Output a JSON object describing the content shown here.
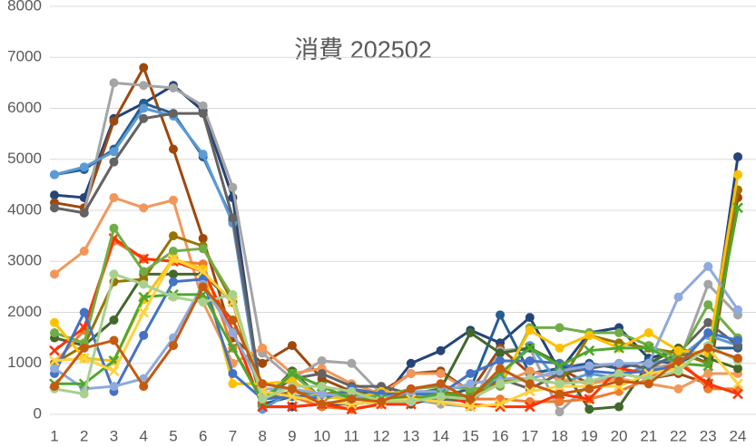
{
  "chart_data": {
    "type": "line",
    "title": "消費 202502",
    "categories": [
      "1",
      "2",
      "3",
      "4",
      "5",
      "6",
      "7",
      "8",
      "9",
      "10",
      "11",
      "12",
      "13",
      "14",
      "15",
      "16",
      "17",
      "18",
      "19",
      "20",
      "21",
      "22",
      "23",
      "24"
    ],
    "ylim": [
      0,
      8000
    ],
    "yticks": [
      0,
      1000,
      2000,
      3000,
      4000,
      5000,
      6000,
      7000,
      8000
    ],
    "grid": true,
    "series": [
      {
        "color": "#264478",
        "marker": "circle",
        "values": [
          4300,
          4250,
          5800,
          6100,
          6450,
          5950,
          4250,
          150,
          150,
          200,
          200,
          250,
          1000,
          1250,
          1650,
          1400,
          1900,
          850,
          1600,
          1700,
          1100,
          1250,
          1000,
          5050
        ]
      },
      {
        "color": "#9e480e",
        "marker": "circle",
        "values": [
          4150,
          4050,
          5750,
          6800,
          5200,
          3450,
          1500,
          1000,
          1350,
          700,
          450,
          450,
          800,
          850,
          450,
          1300,
          800,
          900,
          600,
          800,
          700,
          800,
          600,
          4250
        ]
      },
      {
        "color": "#a5a5a5",
        "marker": "circle",
        "values": [
          4050,
          3950,
          6500,
          6450,
          6400,
          6050,
          4450,
          1200,
          700,
          1050,
          1000,
          400,
          300,
          200,
          150,
          1250,
          1300,
          50,
          600,
          800,
          900,
          1000,
          2550,
          1950
        ]
      },
      {
        "color": "#255e91",
        "marker": "circle",
        "values": [
          4700,
          4800,
          5200,
          6100,
          5900,
          5050,
          3800,
          200,
          350,
          350,
          350,
          200,
          200,
          350,
          500,
          1950,
          800,
          900,
          1000,
          900,
          1050,
          1000,
          1300,
          1300
        ]
      },
      {
        "color": "#5b9bd5",
        "marker": "circle",
        "values": [
          4700,
          4850,
          5150,
          6000,
          5850,
          5100,
          3750,
          100,
          450,
          300,
          450,
          300,
          400,
          300,
          300,
          750,
          1350,
          600,
          800,
          700,
          1000,
          1100,
          1550,
          1350
        ]
      },
      {
        "color": "#f1975a",
        "marker": "circle",
        "values": [
          2750,
          3200,
          4250,
          4050,
          4200,
          2200,
          1000,
          1300,
          800,
          900,
          600,
          400,
          800,
          800,
          450,
          600,
          850,
          700,
          600,
          700,
          600,
          500,
          800,
          800
        ]
      },
      {
        "color": "#636363",
        "marker": "circle",
        "values": [
          4050,
          3950,
          4950,
          5800,
          5900,
          5900,
          3850,
          300,
          700,
          800,
          550,
          550,
          400,
          300,
          250,
          700,
          500,
          800,
          900,
          1000,
          900,
          1200,
          1800,
          1350
        ]
      },
      {
        "color": "#43682b",
        "marker": "circle",
        "values": [
          1500,
          1350,
          1850,
          2750,
          2750,
          2750,
          2200,
          250,
          850,
          300,
          400,
          400,
          400,
          500,
          1600,
          1200,
          1300,
          1000,
          100,
          150,
          1000,
          1300,
          1100,
          900
        ]
      },
      {
        "color": "#ed7d31",
        "marker": "circle",
        "values": [
          1000,
          1650,
          3400,
          3050,
          3000,
          2950,
          1300,
          300,
          350,
          150,
          100,
          200,
          300,
          350,
          300,
          300,
          250,
          250,
          300,
          450,
          700,
          1100,
          500,
          500
        ]
      },
      {
        "color": "#ff3300",
        "marker": "x",
        "values": [
          1250,
          1700,
          3450,
          3050,
          3000,
          2800,
          1650,
          150,
          150,
          200,
          100,
          200,
          200,
          400,
          200,
          150,
          150,
          400,
          300,
          900,
          800,
          1000,
          600,
          400
        ]
      },
      {
        "color": "#997300",
        "marker": "circle",
        "values": [
          1000,
          1350,
          2600,
          2650,
          3500,
          3300,
          2200,
          300,
          450,
          400,
          450,
          300,
          350,
          450,
          350,
          650,
          700,
          600,
          1550,
          1400,
          1300,
          1200,
          1000,
          4400
        ]
      },
      {
        "color": "#70ad47",
        "marker": "circle",
        "values": [
          1600,
          1400,
          3650,
          2800,
          3200,
          3250,
          2300,
          300,
          800,
          300,
          400,
          350,
          500,
          550,
          500,
          550,
          1700,
          1700,
          1600,
          1600,
          1350,
          1100,
          2150,
          1500
        ]
      },
      {
        "color": "#ffc000",
        "marker": "circle",
        "values": [
          1800,
          1100,
          1050,
          2250,
          3050,
          2850,
          600,
          600,
          650,
          350,
          300,
          450,
          400,
          350,
          300,
          600,
          1650,
          1300,
          1550,
          1300,
          1600,
          1250,
          1200,
          4700
        ]
      },
      {
        "color": "#4472c4",
        "marker": "circle",
        "values": [
          800,
          2000,
          450,
          1550,
          2600,
          2650,
          800,
          300,
          350,
          300,
          500,
          400,
          400,
          400,
          800,
          1050,
          1050,
          1000,
          850,
          800,
          850,
          950,
          1600,
          1450
        ]
      },
      {
        "color": "#8faadc",
        "marker": "circle",
        "values": [
          900,
          500,
          550,
          700,
          1500,
          2550,
          1600,
          500,
          500,
          400,
          350,
          300,
          450,
          450,
          600,
          700,
          700,
          850,
          950,
          1000,
          1000,
          2300,
          2900,
          2050
        ]
      },
      {
        "color": "#4ea72e",
        "marker": "x",
        "values": [
          600,
          600,
          1050,
          2300,
          2350,
          2350,
          1300,
          250,
          800,
          550,
          300,
          300,
          300,
          400,
          350,
          800,
          1300,
          950,
          1250,
          1300,
          1300,
          1000,
          950,
          4050
        ]
      },
      {
        "color": "#ffd23f",
        "marker": "x",
        "values": [
          1050,
          1100,
          850,
          2000,
          3050,
          2800,
          2200,
          450,
          350,
          250,
          200,
          250,
          300,
          250,
          150,
          200,
          450,
          550,
          550,
          550,
          800,
          900,
          1300,
          600
        ]
      },
      {
        "color": "#a9d18e",
        "marker": "circle",
        "values": [
          500,
          400,
          2750,
          2550,
          2300,
          2200,
          2350,
          300,
          550,
          550,
          450,
          250,
          250,
          350,
          300,
          600,
          700,
          600,
          650,
          800,
          700,
          850,
          1350,
          1050
        ]
      },
      {
        "color": "#c55a11",
        "marker": "circle",
        "values": [
          550,
          1300,
          1450,
          550,
          1350,
          2500,
          1850,
          600,
          500,
          200,
          300,
          250,
          500,
          600,
          300,
          900,
          600,
          400,
          500,
          650,
          600,
          1050,
          1300,
          1100
        ]
      }
    ]
  }
}
